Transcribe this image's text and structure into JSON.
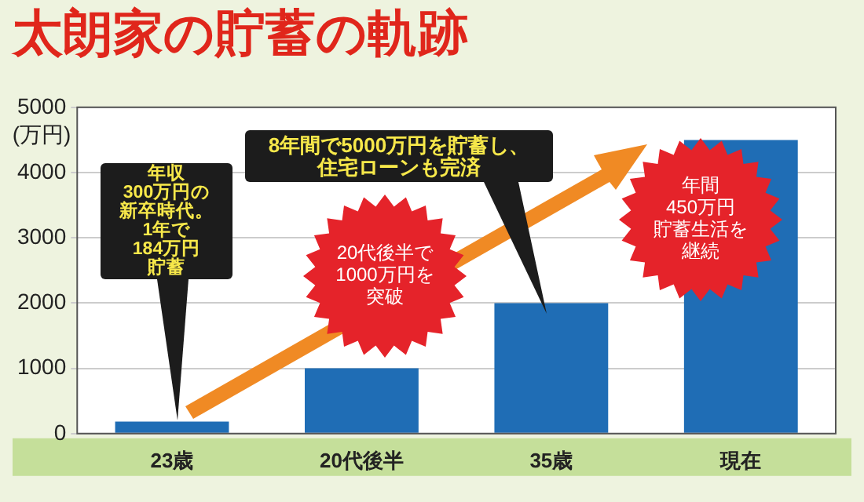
{
  "chart_data": {
    "type": "bar",
    "title": "太朗家の貯蓄の軌跡",
    "ylabel": "(万円)",
    "categories": [
      "23歳",
      "20代後半",
      "35歳",
      "現在"
    ],
    "values": [
      184,
      1000,
      2000,
      4500
    ],
    "color": "#1f6db5",
    "ylim": [
      0,
      5000
    ],
    "yticks": [
      0,
      1000,
      2000,
      3000,
      4000,
      5000
    ],
    "grid": "y",
    "annotations": [
      "年収300万円の新卒時代。1年で184万円貯蓄",
      "8年間で5000万円を貯蓄し、住宅ローンも完済",
      "20代後半で1000万円を突破",
      "年間450万円貯蓄生活を継続"
    ]
  }
}
